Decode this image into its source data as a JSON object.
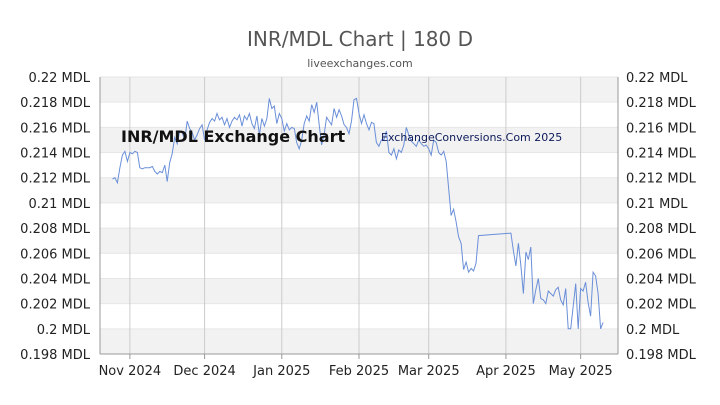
{
  "chart_data": {
    "type": "line",
    "title": "INR/MDL Chart | 180 D",
    "subtitle": "liveexchanges.com",
    "annotations": [
      "INR/MDL Exchange Chart",
      "ExchangeConversions.Com 2025"
    ],
    "xlabel": "",
    "ylabel": "",
    "ylim": [
      0.198,
      0.22
    ],
    "y_ticks": [
      0.198,
      0.2,
      0.202,
      0.204,
      0.206,
      0.208,
      0.21,
      0.212,
      0.214,
      0.216,
      0.218,
      0.22
    ],
    "y_tick_labels": [
      "0.198 MDL",
      "0.2 MDL",
      "0.202 MDL",
      "0.204 MDL",
      "0.206 MDL",
      "0.208 MDL",
      "0.21 MDL",
      "0.212 MDL",
      "0.214 MDL",
      "0.216 MDL",
      "0.218 MDL",
      "0.22 MDL"
    ],
    "x_range": [
      "2024-10-20",
      "2025-05-16"
    ],
    "x_tick_dates": [
      "2024-11-01",
      "2024-12-01",
      "2025-01-01",
      "2025-02-01",
      "2025-03-01",
      "2025-04-01",
      "2025-05-01"
    ],
    "x_tick_labels": [
      "Nov 2024",
      "Dec 2024",
      "Jan 2025",
      "Feb 2025",
      "Mar 2025",
      "Apr 2025",
      "May 2025"
    ],
    "grid": true,
    "legend": "none",
    "colors": {
      "line": "#6a8fd8",
      "band": "#f2f2f2",
      "grid": "#cccccc",
      "axis": "#999999"
    },
    "series": [
      {
        "x": [
          "2024-10-25",
          "2024-10-26",
          "2024-10-27",
          "2024-10-28",
          "2024-10-29",
          "2024-10-30",
          "2024-10-31",
          "2024-11-01",
          "2024-11-02",
          "2024-11-03",
          "2024-11-04",
          "2024-11-05",
          "2024-11-06",
          "2024-11-07",
          "2024-11-08",
          "2024-11-09",
          "2024-11-10",
          "2024-11-11",
          "2024-11-12",
          "2024-11-13",
          "2024-11-14",
          "2024-11-15",
          "2024-11-16",
          "2024-11-17",
          "2024-11-18",
          "2024-11-19",
          "2024-11-20",
          "2024-11-21",
          "2024-11-22",
          "2024-11-23",
          "2024-11-24",
          "2024-11-25",
          "2024-11-26",
          "2024-11-27",
          "2024-11-28",
          "2024-11-29",
          "2024-11-30",
          "2024-12-01",
          "2024-12-02",
          "2024-12-03",
          "2024-12-04",
          "2024-12-05",
          "2024-12-06",
          "2024-12-07",
          "2024-12-08",
          "2024-12-09",
          "2024-12-10",
          "2024-12-11",
          "2024-12-12",
          "2024-12-13",
          "2024-12-14",
          "2024-12-15",
          "2024-12-16",
          "2024-12-17",
          "2024-12-18",
          "2024-12-19",
          "2024-12-20",
          "2024-12-21",
          "2024-12-22",
          "2024-12-23",
          "2024-12-24",
          "2024-12-25",
          "2024-12-26",
          "2024-12-27",
          "2024-12-28",
          "2024-12-29",
          "2024-12-30",
          "2024-12-31",
          "2025-01-01",
          "2025-01-02",
          "2025-01-03",
          "2025-01-04",
          "2025-01-05",
          "2025-01-06",
          "2025-01-07",
          "2025-01-08",
          "2025-01-09",
          "2025-01-10",
          "2025-01-11",
          "2025-01-12",
          "2025-01-13",
          "2025-01-14",
          "2025-01-15",
          "2025-01-16",
          "2025-01-17",
          "2025-01-18",
          "2025-01-19",
          "2025-01-20",
          "2025-01-21",
          "2025-01-22",
          "2025-01-23",
          "2025-01-24",
          "2025-01-25",
          "2025-01-26",
          "2025-01-27",
          "2025-01-28",
          "2025-01-29",
          "2025-01-30",
          "2025-01-31",
          "2025-02-01",
          "2025-02-02",
          "2025-02-03",
          "2025-02-04",
          "2025-02-05",
          "2025-02-06",
          "2025-02-07",
          "2025-02-08",
          "2025-02-09",
          "2025-02-10",
          "2025-02-11",
          "2025-02-12",
          "2025-02-13",
          "2025-02-14",
          "2025-02-15",
          "2025-02-16",
          "2025-02-17",
          "2025-02-18",
          "2025-02-19",
          "2025-02-20",
          "2025-02-21",
          "2025-02-22",
          "2025-02-23",
          "2025-02-24",
          "2025-02-25",
          "2025-02-26",
          "2025-02-27",
          "2025-02-28",
          "2025-03-01",
          "2025-03-02",
          "2025-03-03",
          "2025-03-04",
          "2025-03-05",
          "2025-03-06",
          "2025-03-07",
          "2025-03-08",
          "2025-03-09",
          "2025-03-10",
          "2025-03-11",
          "2025-03-12",
          "2025-03-13",
          "2025-03-14",
          "2025-03-15",
          "2025-03-16",
          "2025-03-17",
          "2025-03-18",
          "2025-03-19",
          "2025-03-20",
          "2025-03-21",
          "2025-04-03",
          "2025-04-04",
          "2025-04-05",
          "2025-04-06",
          "2025-04-07",
          "2025-04-08",
          "2025-04-09",
          "2025-04-10",
          "2025-04-11",
          "2025-04-12",
          "2025-04-13",
          "2025-04-14",
          "2025-04-15",
          "2025-04-16",
          "2025-04-17",
          "2025-04-18",
          "2025-04-19",
          "2025-04-20",
          "2025-04-21",
          "2025-04-22",
          "2025-04-23",
          "2025-04-24",
          "2025-04-25",
          "2025-04-26",
          "2025-04-27",
          "2025-04-28",
          "2025-04-29",
          "2025-04-30",
          "2025-05-01",
          "2025-05-02",
          "2025-05-03",
          "2025-05-04",
          "2025-05-05",
          "2025-05-06",
          "2025-05-07",
          "2025-05-08",
          "2025-05-09",
          "2025-05-10"
        ],
        "values": [
          0.2119,
          0.212,
          0.2116,
          0.2128,
          0.2138,
          0.2141,
          0.2133,
          0.214,
          0.2139,
          0.2141,
          0.214,
          0.2128,
          0.2127,
          0.2128,
          0.2128,
          0.2128,
          0.2129,
          0.2125,
          0.2123,
          0.2125,
          0.2124,
          0.213,
          0.2117,
          0.2132,
          0.2139,
          0.2152,
          0.2147,
          0.2157,
          0.2156,
          0.215,
          0.2165,
          0.2159,
          0.2156,
          0.215,
          0.2154,
          0.2159,
          0.2162,
          0.215,
          0.2158,
          0.2164,
          0.2167,
          0.2165,
          0.2171,
          0.2166,
          0.2168,
          0.2162,
          0.2167,
          0.216,
          0.2165,
          0.2168,
          0.2166,
          0.217,
          0.2161,
          0.2169,
          0.2166,
          0.2171,
          0.2163,
          0.2159,
          0.2169,
          0.2154,
          0.2167,
          0.2161,
          0.2167,
          0.2183,
          0.2175,
          0.2177,
          0.2163,
          0.2171,
          0.2167,
          0.2157,
          0.2163,
          0.2158,
          0.216,
          0.2159,
          0.2148,
          0.2143,
          0.215,
          0.2163,
          0.2169,
          0.2165,
          0.2178,
          0.2172,
          0.218,
          0.2162,
          0.2146,
          0.2154,
          0.2168,
          0.2165,
          0.2162,
          0.2175,
          0.2168,
          0.2174,
          0.2169,
          0.2162,
          0.216,
          0.2155,
          0.2165,
          0.2182,
          0.2183,
          0.2171,
          0.2163,
          0.217,
          0.2163,
          0.2158,
          0.2164,
          0.2163,
          0.2148,
          0.2145,
          0.215,
          0.215,
          0.2157,
          0.214,
          0.2138,
          0.2143,
          0.2135,
          0.2142,
          0.214,
          0.2146,
          0.216,
          0.2154,
          0.2149,
          0.2147,
          0.2145,
          0.215,
          0.2147,
          0.2145,
          0.2146,
          0.2143,
          0.2138,
          0.215,
          0.2148,
          0.214,
          0.2138,
          0.2141,
          0.2133,
          0.2111,
          0.209,
          0.2095,
          0.2085,
          0.2073,
          0.2068,
          0.2047,
          0.2053,
          0.2045,
          0.2048,
          0.2046,
          0.2052,
          0.2074,
          0.2076,
          0.2062,
          0.205,
          0.2068,
          0.205,
          0.2028,
          0.2061,
          0.2055,
          0.2065,
          0.202,
          0.2031,
          0.204,
          0.2024,
          0.2023,
          0.202,
          0.203,
          0.2028,
          0.2026,
          0.2031,
          0.2033,
          0.2023,
          0.2019,
          0.2032,
          0.2,
          0.2,
          0.2018,
          0.2036,
          0.2,
          0.2032,
          0.203,
          0.2037,
          0.2021,
          0.201,
          0.2045,
          0.2042,
          0.2028,
          0.2,
          0.2005
        ]
      }
    ]
  }
}
